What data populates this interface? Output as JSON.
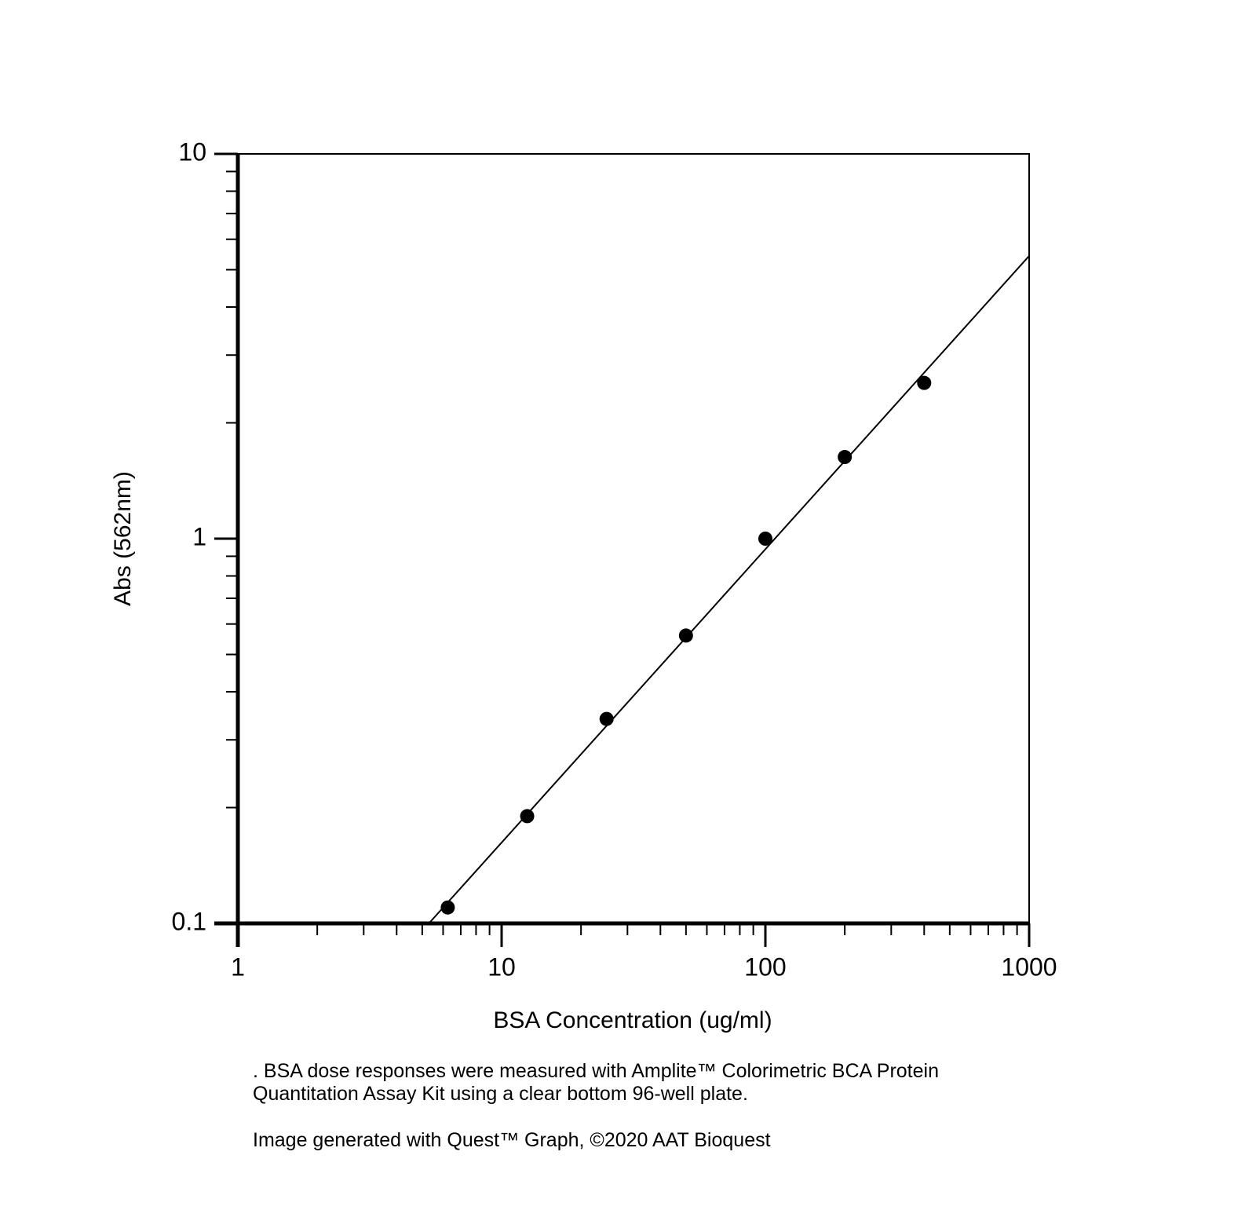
{
  "chart_data": {
    "type": "scatter",
    "x_label": "BSA Concentration (ug/ml)",
    "y_label": "Abs (562nm)",
    "x": [
      6.25,
      12.5,
      25,
      50,
      100,
      200,
      400
    ],
    "values": [
      0.11,
      0.19,
      0.34,
      0.56,
      1.0,
      1.63,
      2.54
    ],
    "color": "#000000",
    "fit": {
      "x": [
        5.3,
        1000
      ],
      "values": [
        0.1,
        5.43
      ]
    },
    "log_x": true,
    "log_y": true,
    "xlim": [
      1,
      1000
    ],
    "ylim": [
      0.1,
      10
    ],
    "xticks": [
      1,
      10,
      100,
      1000
    ],
    "yticks": [
      0.1,
      1,
      10
    ],
    "xminorticks": [
      2,
      3,
      4,
      5,
      6,
      7,
      8,
      9,
      20,
      30,
      40,
      50,
      60,
      70,
      80,
      90,
      200,
      300,
      400,
      500,
      600,
      700,
      800,
      900
    ],
    "yminorticks": [
      0.2,
      0.3,
      0.4,
      0.5,
      0.6,
      0.7,
      0.8,
      0.9,
      2,
      3,
      4,
      5,
      6,
      7,
      8,
      9
    ],
    "caption": [
      ". BSA dose responses were measured with Amplite™ Colorimetric BCA Protein",
      "Quantitation Assay Kit using a clear bottom 96-well plate."
    ],
    "credit": "Image generated with Quest™ Graph, ©2020 AAT Bioquest"
  }
}
